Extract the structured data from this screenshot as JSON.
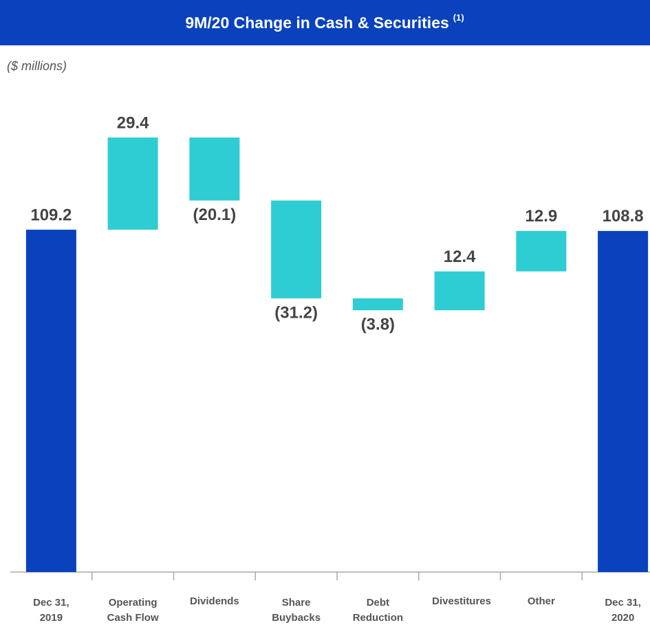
{
  "chart_data": {
    "type": "waterfall",
    "title": "9M/20  Change in Cash & Securities",
    "title_note": "(1)",
    "subtitle": "($ millions)",
    "categories": [
      "Dec 31, 2019",
      "Operating Cash Flow",
      "Dividends",
      "Share Buybacks",
      "Debt Reduction",
      "Divestitures",
      "Other",
      "Dec 31, 2020"
    ],
    "values": [
      109.2,
      29.4,
      -20.1,
      -31.2,
      -3.8,
      12.4,
      12.9,
      108.8
    ],
    "value_labels": [
      "109.2",
      "29.4",
      "(20.1)",
      "(31.2)",
      "(3.8)",
      "12.4",
      "12.9",
      "108.8"
    ],
    "color": "#2ecdd3",
    "total_color": "#0a42bd",
    "header_color": "#0a42bd"
  }
}
